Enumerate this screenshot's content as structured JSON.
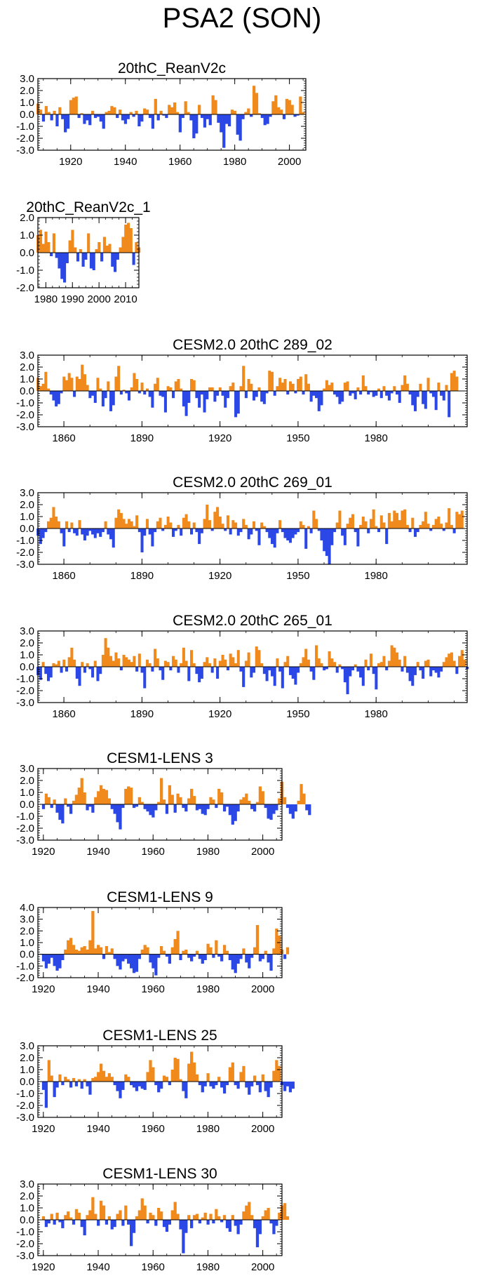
{
  "figure_title": "PSA2 (SON)",
  "colors": {
    "positive": "#f08a1c",
    "negative": "#2b48e6",
    "axis": "#000000"
  },
  "chart_data": [
    {
      "type": "area",
      "title": "20thC_ReanV2c",
      "x_range": [
        1908,
        2006
      ],
      "ylim": [
        -3,
        3
      ],
      "yticks": [
        3,
        2,
        1,
        0,
        -1,
        -2,
        -3
      ],
      "ytick_labels": [
        "3.0",
        "2.0",
        "1.0",
        "0.0",
        "-1.0",
        "-2.0",
        "-3.0"
      ],
      "xticks": [
        1920,
        1940,
        1960,
        1980,
        2000
      ],
      "xtick_labels": [
        "1920",
        "1940",
        "1960",
        "1980",
        "2000"
      ],
      "x_start": 1908,
      "x_step": 1,
      "values": [
        0.9,
        0.4,
        -0.6,
        0.7,
        0.2,
        -0.5,
        0.3,
        -1.0,
        0.6,
        -0.4,
        -1.5,
        -1.2,
        1.2,
        1.4,
        1.5,
        -0.3,
        0.1,
        -0.8,
        -0.5,
        -0.9,
        0.3,
        -0.3,
        -0.2,
        -0.6,
        -1.2,
        0.2,
        0.3,
        0.7,
        0.6,
        -0.3,
        0.4,
        -0.5,
        -0.8,
        -0.4,
        0.2,
        -0.2,
        0.3,
        -1.0,
        -0.6,
        0.5,
        0.4,
        -0.3,
        -1.2,
        1.3,
        -0.5,
        0.3,
        -0.1,
        -0.3,
        0.8,
        0.6,
        1.0,
        0.2,
        -1.5,
        -0.3,
        1.1,
        0.2,
        -0.5,
        -2.0,
        -1.6,
        0.8,
        -0.3,
        -1.1,
        -0.4,
        -0.9,
        1.6,
        1.2,
        -0.7,
        -1.5,
        -2.8,
        -0.8,
        -1.0,
        0.4,
        0.3,
        -1.7,
        -2.2,
        -0.4,
        0.2,
        0.5,
        -0.2,
        2.4,
        1.8,
        0.1,
        -0.3,
        -0.9,
        -0.8,
        -0.2,
        1.1,
        1.6,
        0.6,
        0.4,
        -0.4,
        1.3,
        1.2,
        0.8,
        -0.2,
        -0.1,
        1.5,
        0.2
      ]
    },
    {
      "type": "area",
      "title": "20thC_ReanV2c_1",
      "x_range": [
        1977,
        2015
      ],
      "ylim": [
        -2,
        2
      ],
      "yticks": [
        2,
        1,
        0,
        -1,
        -2
      ],
      "ytick_labels": [
        "2.0",
        "1.0",
        "0.0",
        "-1.0",
        "-2.0"
      ],
      "xticks": [
        1980,
        1990,
        2000,
        2010
      ],
      "xtick_labels": [
        "1980",
        "1990",
        "2000",
        "2010"
      ],
      "x_start": 1977,
      "x_step": 1,
      "values": [
        1.0,
        1.3,
        0.5,
        1.2,
        0.6,
        -0.2,
        1.1,
        -0.3,
        -0.9,
        -1.5,
        -1.7,
        -0.6,
        0.7,
        1.3,
        0.3,
        -0.5,
        0.2,
        -0.8,
        -0.4,
        1.1,
        -0.9,
        -1.0,
        0.2,
        0.6,
        -0.5,
        0.9,
        0.4,
        0.5,
        -0.8,
        -1.1,
        -0.4,
        0.3,
        0.9,
        1.6,
        1.7,
        1.4,
        -0.7,
        0.6,
        0.3
      ]
    },
    {
      "type": "area",
      "title": "CESM2.0 20thC 289_02",
      "x_range": [
        1850,
        2015
      ],
      "ylim": [
        -3,
        3
      ],
      "yticks": [
        3,
        2,
        1,
        0,
        -1,
        -2,
        -3
      ],
      "ytick_labels": [
        "3.0",
        "2.0",
        "1.0",
        "0.0",
        "-1.0",
        "-2.0",
        "-3.0"
      ],
      "xticks": [
        1860,
        1890,
        1920,
        1950,
        1980
      ],
      "xtick_labels": [
        "1860",
        "1890",
        "1920",
        "1950",
        "1980"
      ],
      "x_start": 1850,
      "x_step": 1,
      "values": [
        1.1,
        0.4,
        0.6,
        1.6,
        0.2,
        -0.3,
        -0.8,
        -1.3,
        -1.1,
        -0.2,
        1.2,
        0.9,
        1.5,
        1.1,
        -0.5,
        1.2,
        1.0,
        2.2,
        1.4,
        0.5,
        -0.6,
        -0.4,
        -1.0,
        1.1,
        0.2,
        -1.3,
        -0.6,
        0.8,
        -1.7,
        -1.2,
        1.2,
        2.1,
        -0.3,
        0.1,
        -0.2,
        -0.8,
        0.3,
        1.5,
        1.0,
        -0.2,
        0.7,
        -0.3,
        0.2,
        -0.5,
        -1.4,
        0.6,
        1.1,
        -0.4,
        -0.5,
        -1.8,
        0.4,
        0.3,
        -0.6,
        0.8,
        1.0,
        0.2,
        -1.3,
        -2.1,
        -1.0,
        1.0,
        0.9,
        -0.6,
        -1.4,
        -0.3,
        -1.8,
        -0.7,
        0.3,
        0.3,
        -0.9,
        -0.4,
        0.3,
        -0.4,
        -1.4,
        -0.6,
        0.4,
        0.7,
        -2.2,
        -1.9,
        0.4,
        2.1,
        -0.6,
        1.0,
        0.6,
        -0.8,
        -0.5,
        0.3,
        -0.9,
        -1.1,
        -0.2,
        1.7,
        1.6,
        -0.4,
        0.4,
        1.1,
        0.7,
        1.0,
        -0.3,
        0.8,
        0.6,
        -0.2,
        1.0,
        1.2,
        -0.3,
        1.4,
        0.6,
        -0.9,
        -0.4,
        -0.6,
        -1.7,
        -1.2,
        0.2,
        0.9,
        0.5,
        0.7,
        -0.3,
        -0.5,
        -1.1,
        -0.9,
        0.7,
        0.8,
        -0.4,
        -0.2,
        -0.7,
        0.3,
        -0.3,
        1.3,
        0.4,
        -0.3,
        -0.1,
        -0.5,
        -0.4,
        0.2,
        -0.6,
        0.4,
        -0.4,
        -0.8,
        -0.2,
        0.4,
        -0.3,
        -1.0,
        0.5,
        1.3,
        0.6,
        -0.3,
        -1.2,
        -1.7,
        -0.5,
        0.6,
        -1.1,
        -1.5,
        1.1,
        -0.2,
        -0.5,
        -1.6,
        0.7,
        -0.4,
        -0.8,
        0.5,
        -2.2,
        1.5,
        1.7,
        1.2
      ]
    },
    {
      "type": "area",
      "title": "CESM2.0 20thC 269_01",
      "x_range": [
        1850,
        2015
      ],
      "ylim": [
        -3,
        3
      ],
      "yticks": [
        3,
        2,
        1,
        0,
        -1,
        -2,
        -3
      ],
      "ytick_labels": [
        "3.0",
        "2.0",
        "1.0",
        "0.0",
        "-1.0",
        "-2.0",
        "-3.0"
      ],
      "xticks": [
        1860,
        1890,
        1920,
        1950,
        1980
      ],
      "xtick_labels": [
        "1860",
        "1890",
        "1920",
        "1950",
        "1980"
      ],
      "x_start": 1850,
      "x_step": 1,
      "values": [
        -0.6,
        -1.3,
        -0.8,
        -0.3,
        0.6,
        0.9,
        1.8,
        1.0,
        0.6,
        -0.4,
        -1.5,
        0.6,
        -0.3,
        0.5,
        -0.4,
        -0.6,
        0.7,
        -0.5,
        -1.0,
        -0.6,
        -0.2,
        -0.5,
        -0.8,
        -0.4,
        -0.7,
        -0.3,
        0.6,
        -0.5,
        -0.9,
        -1.6,
        0.9,
        1.6,
        1.3,
        0.8,
        0.4,
        0.8,
        0.6,
        0.2,
        1.1,
        -0.3,
        -2.0,
        -0.6,
        0.8,
        -0.5,
        -1.5,
        -0.3,
        0.6,
        0.9,
        -0.2,
        0.3,
        1.0,
        0.5,
        -0.7,
        -0.2,
        0.3,
        -0.6,
        0.9,
        1.2,
        0.6,
        -0.5,
        0.5,
        -0.3,
        -1.3,
        -0.4,
        0.8,
        2.0,
        0.7,
        -0.2,
        1.4,
        1.8,
        1.0,
        0.4,
        -0.2,
        1.1,
        -0.5,
        0.7,
        0.5,
        -0.6,
        -0.3,
        0.8,
        0.3,
        -0.9,
        -0.5,
        0.6,
        -0.2,
        -1.4,
        0.5,
        0.2,
        -0.3,
        -0.8,
        -1.3,
        -1.6,
        -0.4,
        0.7,
        -0.3,
        -0.8,
        -1.0,
        -1.2,
        -0.8,
        -0.5,
        -0.3,
        0.6,
        0.3,
        -1.7,
        0.2,
        -0.4,
        1.5,
        0.8,
        -0.2,
        -1.0,
        -1.9,
        -2.3,
        -3.0,
        -1.4,
        -0.3,
        0.5,
        1.5,
        -0.6,
        -1.4,
        0.4,
        0.9,
        1.2,
        -0.3,
        -1.5,
        0.3,
        1.0,
        0.6,
        -0.4,
        0.8,
        1.6,
        0.2,
        -0.3,
        1.1,
        0.5,
        -1.3,
        1.3,
        0.6,
        1.5,
        1.3,
        0.7,
        1.5,
        1.6,
        0.3,
        -0.3,
        0.9,
        -0.7,
        -0.3,
        0.3,
        0.6,
        1.4,
        0.4,
        -0.2,
        0.3,
        0.8,
        1.0,
        0.4,
        -0.2,
        0.5,
        1.7,
        0.3,
        -0.4,
        1.4,
        1.2,
        1.5
      ]
    },
    {
      "type": "area",
      "title": "CESM2.0 20thC 265_01",
      "x_range": [
        1850,
        2015
      ],
      "ylim": [
        -3,
        3
      ],
      "yticks": [
        3,
        2,
        1,
        0,
        -1,
        -2,
        -3
      ],
      "ytick_labels": [
        "3.0",
        "2.0",
        "1.0",
        "0.0",
        "-1.0",
        "-2.0",
        "-3.0"
      ],
      "xticks": [
        1860,
        1890,
        1920,
        1950,
        1980
      ],
      "xtick_labels": [
        "1860",
        "1890",
        "1920",
        "1950",
        "1980"
      ],
      "x_start": 1850,
      "x_step": 1,
      "values": [
        -0.7,
        -1.1,
        0.4,
        -0.6,
        -1.2,
        -0.9,
        0.3,
        0.2,
        0.5,
        -0.5,
        0.6,
        -0.4,
        0.8,
        1.6,
        0.6,
        -1.0,
        -1.6,
        0.4,
        -0.5,
        0.3,
        -0.2,
        -0.9,
        0.5,
        -1.2,
        -0.6,
        1.0,
        2.4,
        1.6,
        0.9,
        0.5,
        1.2,
        0.7,
        -0.3,
        1.0,
        0.8,
        0.6,
        0.4,
        0.9,
        -0.4,
        1.1,
        -0.5,
        -1.8,
        0.6,
        0.3,
        -0.4,
        1.5,
        0.7,
        -0.3,
        -1.1,
        0.5,
        0.4,
        -0.3,
        0.9,
        0.6,
        -0.5,
        0.3,
        1.6,
        0.5,
        -1.2,
        1.4,
        0.3,
        -0.6,
        -1.3,
        -1.0,
        0.4,
        0.8,
        0.3,
        -0.5,
        0.7,
        -1.0,
        0.5,
        1.0,
        0.6,
        -0.3,
        1.1,
        0.8,
        0.3,
        1.4,
        -0.4,
        -1.7,
        0.5,
        1.2,
        -0.9,
        -0.5,
        1.7,
        1.4,
        0.3,
        -0.6,
        -1.2,
        -0.3,
        -0.8,
        -1.6,
        0.7,
        -0.4,
        -1.8,
        0.4,
        0.9,
        -0.7,
        -1.0,
        -1.5,
        -0.5,
        0.3,
        0.8,
        1.5,
        0.6,
        -0.4,
        -1.1,
        1.8,
        0.7,
        0.3,
        -0.3,
        -0.2,
        1.3,
        0.7,
        0.4,
        -0.5,
        0.2,
        -0.2,
        -1.3,
        -2.3,
        -0.8,
        -0.3,
        0.2,
        -0.4,
        -0.9,
        -1.6,
        0.6,
        -0.3,
        1.1,
        -0.6,
        -1.9,
        0.3,
        0.4,
        0.9,
        -0.3,
        0.5,
        1.8,
        1.6,
        1.2,
        0.6,
        -0.4,
        0.9,
        -0.5,
        -1.2,
        -1.6,
        -0.7,
        0.4,
        -0.3,
        -1.0,
        0.5,
        0.6,
        -0.8,
        -0.3,
        -0.5,
        -0.9,
        -0.4,
        0.4,
        0.8,
        1.1,
        1.2,
        0.5,
        -0.6,
        0.9,
        1.4,
        0.6,
        -0.2
      ]
    },
    {
      "type": "area",
      "title": "CESM1-LENS 3",
      "x_range": [
        1918,
        2007
      ],
      "ylim": [
        -3,
        3
      ],
      "yticks": [
        3,
        2,
        1,
        0,
        -1,
        -2,
        -3
      ],
      "ytick_labels": [
        "3.0",
        "2.0",
        "1.0",
        "0.0",
        "-1.0",
        "-2.0",
        "-3.0"
      ],
      "xticks": [
        1920,
        1940,
        1960,
        1980,
        2000
      ],
      "xtick_labels": [
        "1920",
        "1940",
        "1960",
        "1980",
        "2000"
      ],
      "x_start": 1920,
      "x_step": 1,
      "values": [
        -0.4,
        0.9,
        0.6,
        -0.3,
        0.4,
        -0.7,
        -1.3,
        -1.6,
        0.5,
        -0.2,
        -0.8,
        0.3,
        0.8,
        1.4,
        2.2,
        1.0,
        -0.5,
        -0.2,
        -0.7,
        0.6,
        1.1,
        1.6,
        1.3,
        1.2,
        0.5,
        -0.4,
        -0.8,
        -1.5,
        -2.1,
        -0.3,
        1.3,
        1.5,
        1.4,
        -0.3,
        -0.2,
        0.6,
        0.2,
        -0.4,
        -0.6,
        -0.9,
        -1.1,
        -0.5,
        0.2,
        2.2,
        0.4,
        -0.8,
        1.6,
        0.8,
        -0.7,
        0.9,
        0.6,
        -0.3,
        -0.6,
        0.5,
        1.3,
        0.7,
        -0.5,
        -0.4,
        -0.8,
        -0.9,
        -0.4,
        0.6,
        0.4,
        -0.3,
        1.3,
        1.0,
        -0.6,
        -0.2,
        -0.9,
        -1.7,
        -1.4,
        -0.6,
        0.4,
        0.6,
        0.9,
        0.3,
        -0.4,
        -0.6,
        0.2,
        1.5,
        1.1,
        -0.3,
        -1.2,
        -1.3,
        -0.8,
        -0.5,
        0.5,
        1.9,
        0.6,
        -0.3,
        -0.8,
        -1.2,
        -0.6,
        0.3,
        1.7,
        0.9,
        -0.5,
        -0.9
      ]
    },
    {
      "type": "area",
      "title": "CESM1-LENS 9",
      "x_range": [
        1918,
        2007
      ],
      "ylim": [
        -2,
        4
      ],
      "yticks": [
        4,
        3,
        2,
        1,
        0,
        -1,
        -2
      ],
      "ytick_labels": [
        "4.0",
        "3.0",
        "2.0",
        "1.0",
        "0.0",
        "-1.0",
        "-2.0"
      ],
      "xticks": [
        1920,
        1940,
        1960,
        1980,
        2000
      ],
      "xtick_labels": [
        "1920",
        "1940",
        "1960",
        "1980",
        "2000"
      ],
      "x_start": 1920,
      "x_step": 1,
      "values": [
        -0.6,
        -1.2,
        -0.8,
        -0.3,
        -1.0,
        -1.4,
        -1.2,
        -0.5,
        0.4,
        1.2,
        1.4,
        0.8,
        0.4,
        0.3,
        0.6,
        0.7,
        0.4,
        1.2,
        3.7,
        0.5,
        0.8,
        0.6,
        -0.4,
        0.7,
        0.2,
        0.5,
        -0.4,
        -1.0,
        -1.3,
        -0.6,
        -0.4,
        -0.8,
        -1.2,
        -1.6,
        -1.5,
        -0.4,
        0.4,
        0.8,
        0.6,
        -0.7,
        -1.2,
        -1.8,
        -0.3,
        0.7,
        0.3,
        -0.2,
        -0.8,
        0.6,
        1.3,
        2.0,
        -0.5,
        0.3,
        0.4,
        -0.3,
        -0.6,
        -0.2,
        0.3,
        -0.4,
        -0.8,
        -0.5,
        0.9,
        0.6,
        -0.3,
        1.2,
        -0.2,
        -0.6,
        0.8,
        0.3,
        -0.5,
        -1.3,
        -1.6,
        -0.8,
        -0.4,
        0.5,
        -0.7,
        -1.2,
        -0.3,
        0.6,
        2.5,
        -0.6,
        -0.4,
        0.3,
        -0.7,
        -1.4,
        0.5,
        2.2,
        1.6,
        0.4,
        -0.4,
        0.6
      ]
    },
    {
      "type": "area",
      "title": "CESM1-LENS 25",
      "x_range": [
        1918,
        2007
      ],
      "ylim": [
        -3,
        3
      ],
      "yticks": [
        3,
        2,
        1,
        0,
        -1,
        -2,
        -3
      ],
      "ytick_labels": [
        "3.0",
        "2.0",
        "1.0",
        "0.0",
        "-1.0",
        "-2.0",
        "-3.0"
      ],
      "xticks": [
        1920,
        1940,
        1960,
        1980,
        2000
      ],
      "xtick_labels": [
        "1920",
        "1940",
        "1960",
        "1980",
        "2000"
      ],
      "x_start": 1920,
      "x_step": 1,
      "values": [
        -0.7,
        -2.2,
        1.8,
        0.5,
        -1.3,
        -0.5,
        0.6,
        -0.3,
        0.4,
        0.2,
        -0.5,
        0.3,
        -0.4,
        0.2,
        -0.6,
        0.2,
        -0.4,
        -1.1,
        0.3,
        0.4,
        0.8,
        1.5,
        0.9,
        0.4,
        0.7,
        0.4,
        -0.3,
        -0.8,
        -1.4,
        -0.7,
        0.6,
        0.4,
        -0.3,
        -0.5,
        -0.8,
        -0.4,
        -0.6,
        -0.7,
        0.8,
        1.8,
        1.2,
        -0.3,
        -0.9,
        -0.6,
        0.5,
        0.4,
        -0.3,
        1.0,
        2.0,
        1.9,
        0.2,
        -0.8,
        -1.4,
        1.5,
        2.5,
        1.6,
        0.6,
        -0.3,
        -0.9,
        -0.4,
        0.7,
        -0.4,
        -0.6,
        -0.3,
        0.4,
        -0.5,
        -1.0,
        -0.3,
        1.2,
        1.6,
        -0.3,
        -0.6,
        0.8,
        1.3,
        -0.5,
        -1.1,
        -0.4,
        0.5,
        -0.3,
        -0.9,
        0.6,
        -0.8,
        -1.3,
        -0.5,
        0.9,
        1.8,
        1.3,
        -0.3,
        -0.8,
        -0.4,
        -0.9,
        -0.6
      ]
    },
    {
      "type": "area",
      "title": "CESM1-LENS 30",
      "x_range": [
        1918,
        2007
      ],
      "ylim": [
        -3,
        3
      ],
      "yticks": [
        3,
        2,
        1,
        0,
        -1,
        -2,
        -3
      ],
      "ytick_labels": [
        "3.0",
        "2.0",
        "1.0",
        "0.0",
        "-1.0",
        "-2.0",
        "-3.0"
      ],
      "xticks": [
        1920,
        1940,
        1960,
        1980,
        2000
      ],
      "xtick_labels": [
        "1920",
        "1940",
        "1960",
        "1980",
        "2000"
      ],
      "x_start": 1920,
      "x_step": 1,
      "values": [
        0.3,
        -0.6,
        -0.3,
        0.5,
        -0.4,
        0.6,
        -0.2,
        -0.7,
        0.4,
        0.7,
        0.2,
        -0.4,
        0.9,
        0.6,
        -0.6,
        -1.3,
        0.4,
        0.8,
        1.9,
        0.5,
        -0.5,
        1.6,
        1.2,
        -0.4,
        0.3,
        -0.8,
        -0.6,
        0.5,
        0.8,
        -0.5,
        1.2,
        -0.4,
        -2.2,
        -1.1,
        0.3,
        0.8,
        1.8,
        1.2,
        -0.3,
        0.6,
        0.4,
        -0.5,
        1.0,
        0.7,
        -0.6,
        -1.0,
        -0.4,
        0.8,
        1.5,
        0.5,
        -0.8,
        -2.8,
        -1.1,
        0.4,
        -0.7,
        0.4,
        0.5,
        -0.3,
        0.2,
        0.6,
        -0.4,
        0.5,
        -0.3,
        0.9,
        0.3,
        -0.2,
        0.4,
        -0.7,
        -1.0,
        0.4,
        -0.5,
        -1.2,
        -0.4,
        0.7,
        1.2,
        1.5,
        0.4,
        -0.7,
        -2.3,
        -1.2,
        0.3,
        0.8,
        1.0,
        -0.3,
        -1.2,
        -0.5,
        0.6,
        1.2,
        1.4,
        0.3
      ]
    }
  ]
}
